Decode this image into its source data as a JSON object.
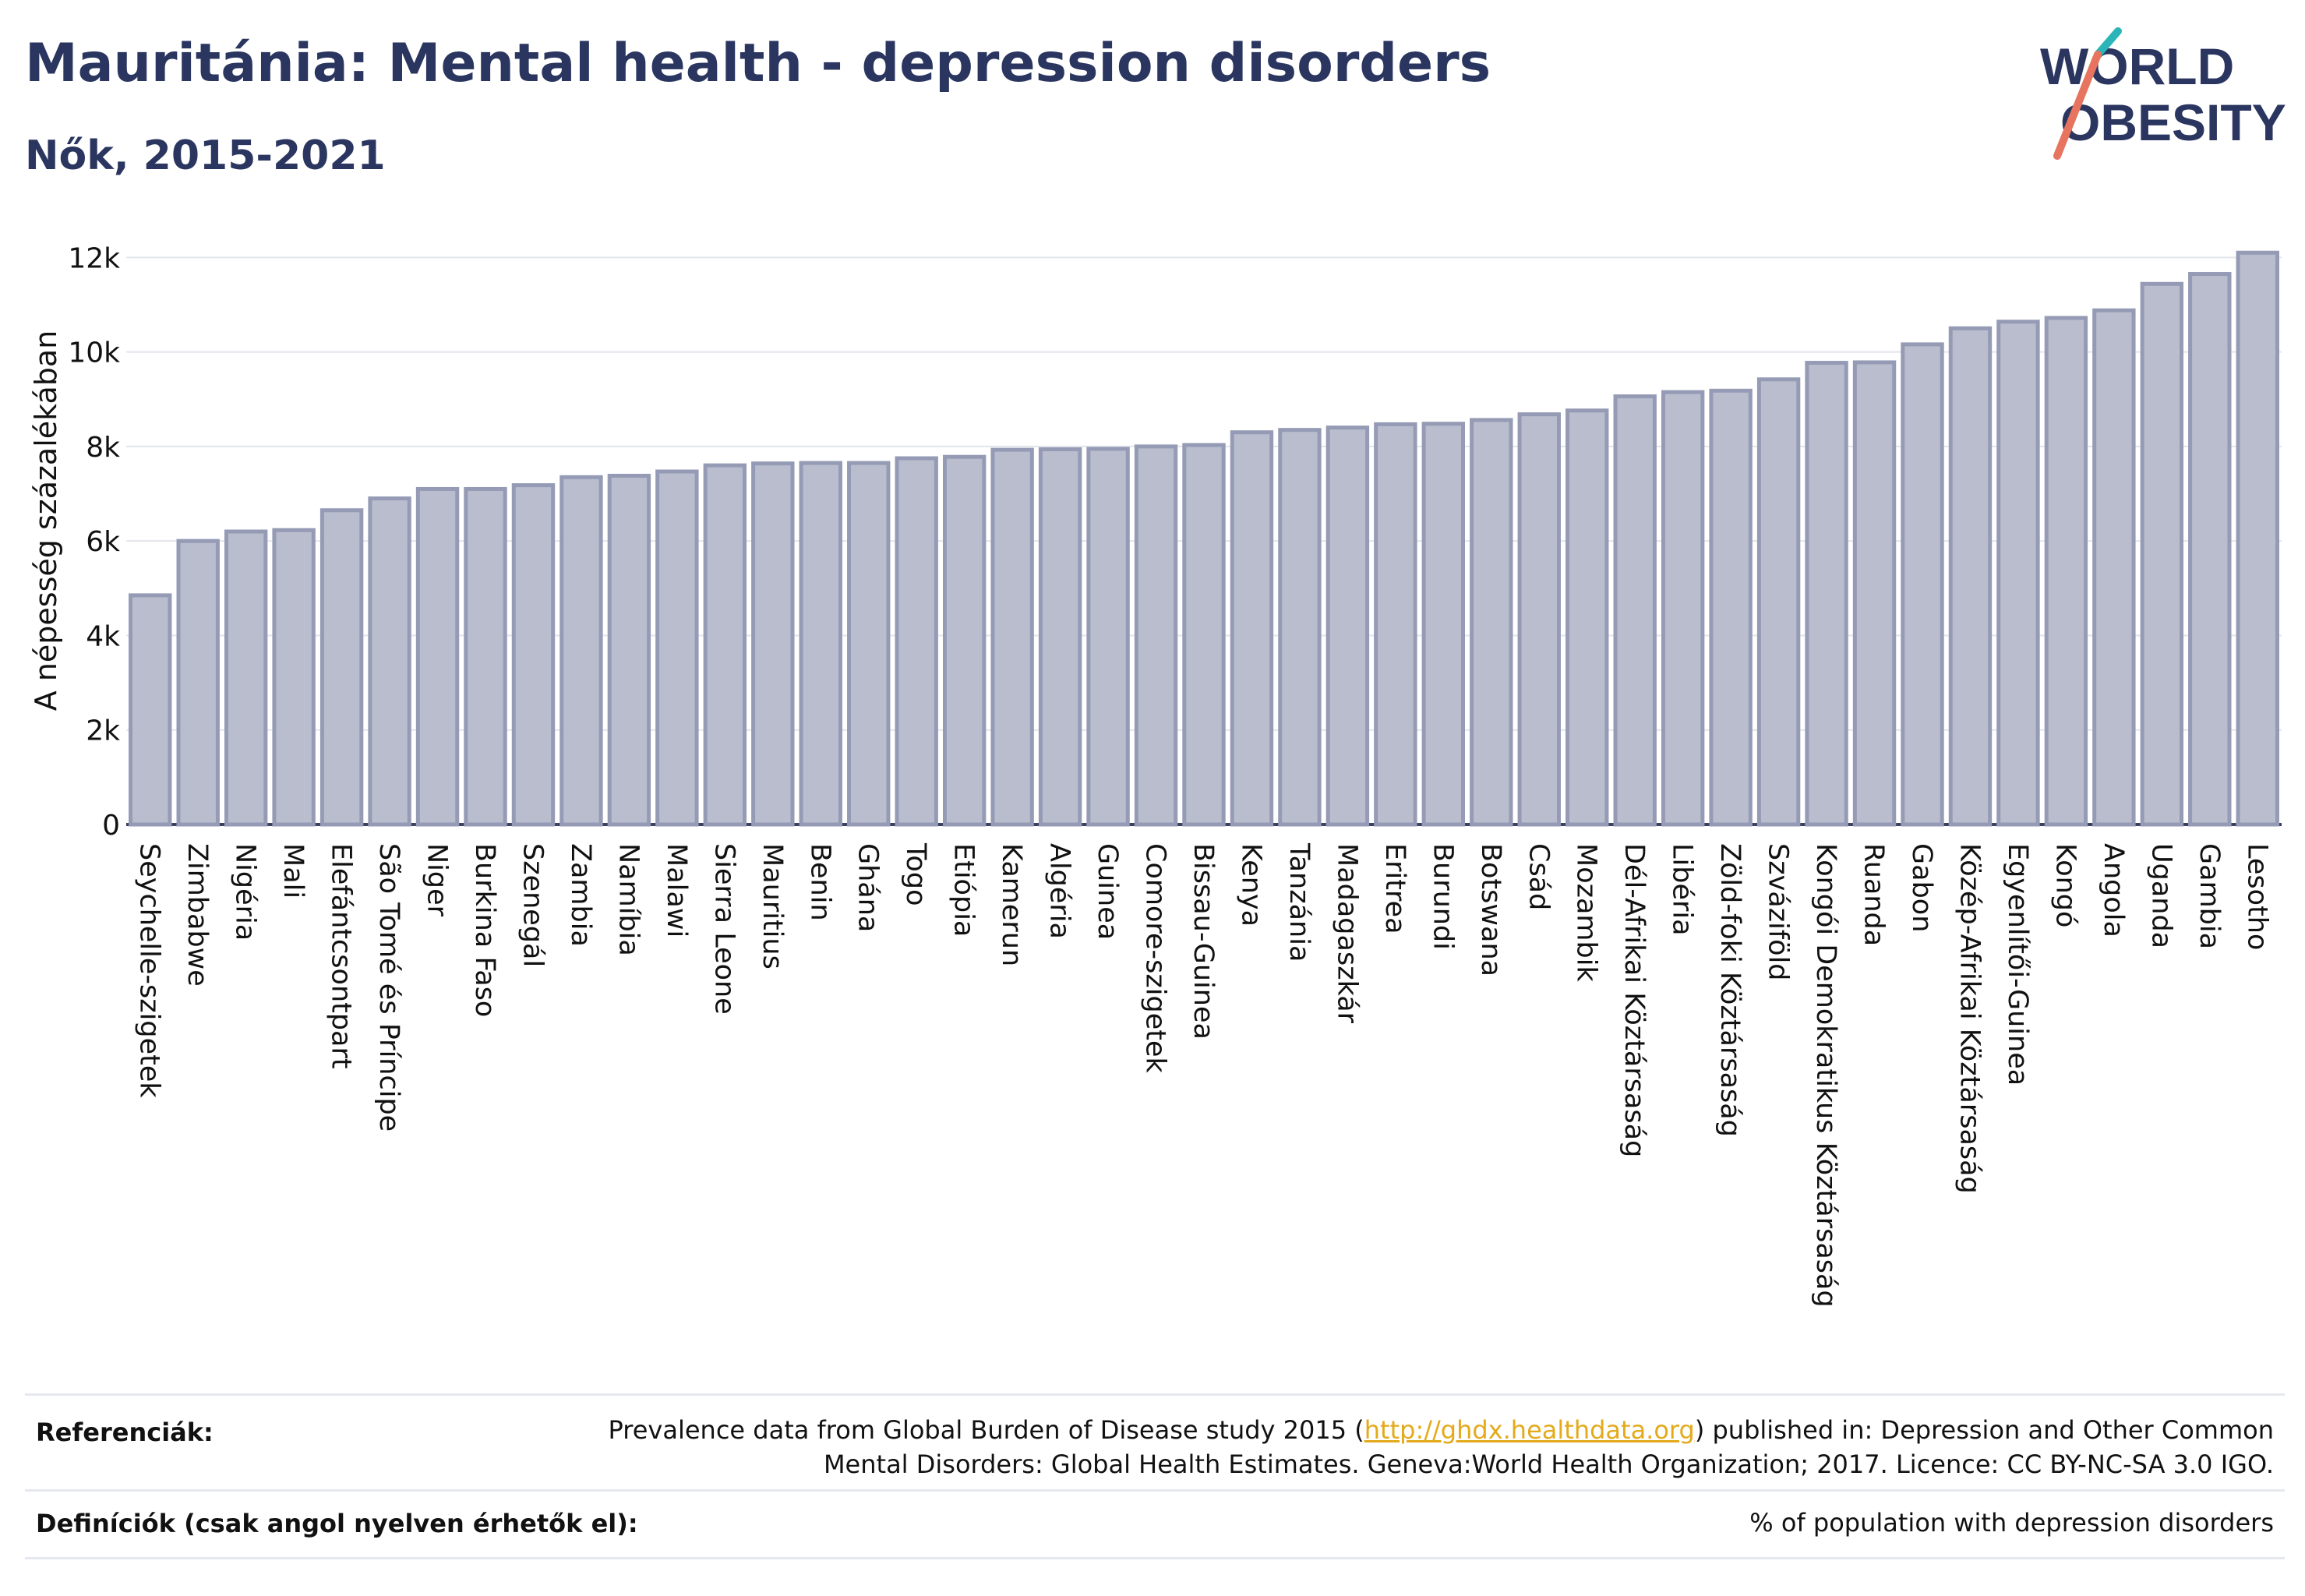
{
  "header": {
    "title": "Mauritánia: Mental health - depression disorders",
    "subtitle": "Nők, 2015-2021",
    "logo_line1": "WORLD",
    "logo_line2": "OBESITY"
  },
  "chart_data": {
    "type": "bar",
    "title": "Mauritánia: Mental health - depression disorders",
    "subtitle": "Nők, 2015-2021",
    "xlabel": "",
    "ylabel": "A népesség százalékában",
    "ylim": [
      0,
      12500
    ],
    "yticks": [
      0,
      2000,
      4000,
      6000,
      8000,
      10000,
      12000
    ],
    "ytick_labels": [
      "0",
      "2k",
      "4k",
      "6k",
      "8k",
      "10k",
      "12k"
    ],
    "grid": true,
    "legend": "none",
    "bar_color": "#b9bdce",
    "bar_edge_color": "#959bb5",
    "categories": [
      "Seychelle-szigetek",
      "Zimbabwe",
      "Nigéria",
      "Mali",
      "Elefántcsontpart",
      "São Tomé és Príncipe",
      "Niger",
      "Burkina Faso",
      "Szenegál",
      "Zambia",
      "Namíbia",
      "Malawi",
      "Sierra Leone",
      "Mauritius",
      "Benin",
      "Ghána",
      "Togo",
      "Etiópia",
      "Kamerun",
      "Algéria",
      "Guinea",
      "Comore-szigetek",
      "Bissau-Guinea",
      "Kenya",
      "Tanzánia",
      "Madagaszkár",
      "Eritrea",
      "Burundi",
      "Botswana",
      "Csád",
      "Mozambik",
      "Dél-Afrikai Köztársaság",
      "Libéria",
      "Zöld-foki Köztársaság",
      "Szváziföld",
      "Kongói Demokratikus Köztársaság",
      "Ruanda",
      "Gabon",
      "Közép-Afrikai Köztársaság",
      "Egyenlítői-Guinea",
      "Kongó",
      "Angola",
      "Uganda",
      "Gambia",
      "Lesotho"
    ],
    "values": [
      4850,
      6000,
      6200,
      6230,
      6650,
      6900,
      7100,
      7100,
      7180,
      7350,
      7380,
      7470,
      7600,
      7640,
      7650,
      7650,
      7750,
      7780,
      7930,
      7940,
      7950,
      8000,
      8030,
      8300,
      8350,
      8400,
      8470,
      8480,
      8560,
      8680,
      8760,
      9060,
      9150,
      9180,
      9420,
      9770,
      9780,
      10160,
      10500,
      10640,
      10720,
      10880,
      11440,
      11650,
      12100
    ]
  },
  "footer": {
    "references_label": "Referenciák:",
    "references_pre": "Prevalence data from Global Burden of Disease study 2015 (",
    "references_link": "http://ghdx.healthdata.org",
    "references_post": ") published in: Depression and Other Common",
    "references_line2": "Mental Disorders: Global Health Estimates. Geneva:World Health Organization; 2017. Licence: CC BY-NC-SA 3.0 IGO.",
    "definitions_label": "Definíciók (csak angol nyelven érhetők el):",
    "definitions_text": "% of population with depression disorders"
  }
}
